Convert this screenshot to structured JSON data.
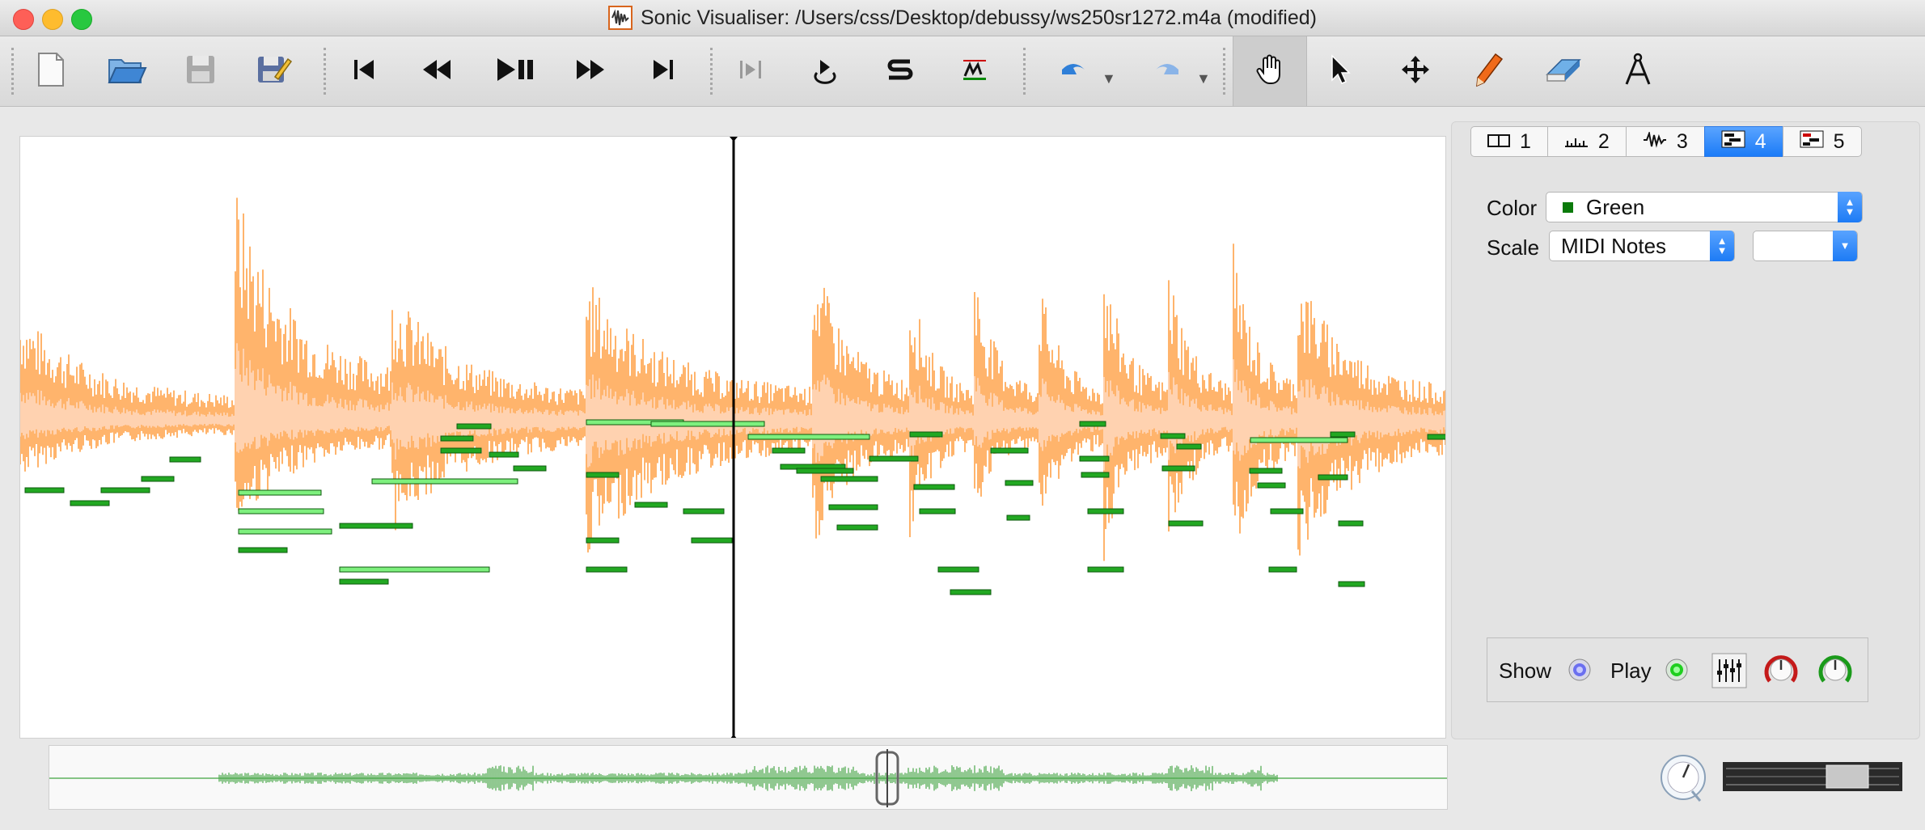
{
  "window": {
    "title": "Sonic Visualiser: /Users/css/Desktop/debussy/ws250sr1272.m4a (modified)"
  },
  "toolbar": {
    "buttons": [
      {
        "name": "new-session-button",
        "icon": "document-icon"
      },
      {
        "name": "open-button",
        "icon": "folder-open-icon"
      },
      {
        "name": "save-button",
        "icon": "floppy-icon"
      },
      {
        "name": "save-as-button",
        "icon": "floppy-pencil-icon"
      },
      {
        "name": "rewind-start-button",
        "icon": "skip-start-icon"
      },
      {
        "name": "rewind-button",
        "icon": "rewind-icon"
      },
      {
        "name": "play-pause-button",
        "icon": "play-pause-icon"
      },
      {
        "name": "fast-forward-button",
        "icon": "fast-forward-icon"
      },
      {
        "name": "ffwd-end-button",
        "icon": "skip-end-icon"
      },
      {
        "name": "constrain-playback-button",
        "icon": "constrain-icon"
      },
      {
        "name": "loop-playback-button",
        "icon": "loop-icon"
      },
      {
        "name": "solo-button",
        "icon": "solo-icon"
      },
      {
        "name": "align-button",
        "icon": "align-icon"
      },
      {
        "name": "undo-button",
        "icon": "undo-icon"
      },
      {
        "name": "redo-button",
        "icon": "redo-icon"
      },
      {
        "name": "navigate-tool-button",
        "icon": "hand-icon"
      },
      {
        "name": "select-tool-button",
        "icon": "arrow-cursor-icon"
      },
      {
        "name": "edit-tool-button",
        "icon": "move-icon"
      },
      {
        "name": "draw-tool-button",
        "icon": "pencil-icon"
      },
      {
        "name": "erase-tool-button",
        "icon": "eraser-icon"
      },
      {
        "name": "measure-tool-button",
        "icon": "compass-icon"
      }
    ]
  },
  "layer_tabs": [
    {
      "label": "1",
      "icon": "pane-icon"
    },
    {
      "label": "2",
      "icon": "ruler-icon"
    },
    {
      "label": "3",
      "icon": "waveform-icon"
    },
    {
      "label": "4",
      "icon": "notes-icon",
      "active": true
    },
    {
      "label": "5",
      "icon": "notes-grid-icon"
    }
  ],
  "properties": {
    "color_label": "Color",
    "color_value": "Green",
    "color_swatch": "#0b7a0b",
    "scale_label": "Scale",
    "scale_value": "MIDI Notes",
    "scale_extra_value": ""
  },
  "showplay": {
    "show_label": "Show",
    "play_label": "Play"
  },
  "colors": {
    "waveform": "#ff9b3b",
    "waveform_fill": "#ffd2b0",
    "notes": "#22a822",
    "notes_highlight": "#7ef07e",
    "accent": "#1b7bf7"
  }
}
